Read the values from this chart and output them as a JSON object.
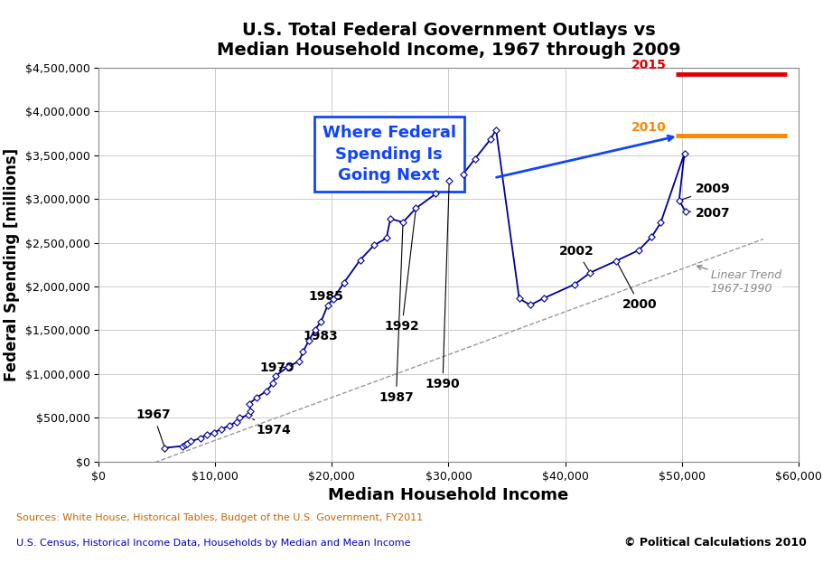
{
  "title": "U.S. Total Federal Government Outlays vs\nMedian Household Income, 1967 through 2009",
  "xlabel": "Median Household Income",
  "ylabel": "Federal Spending [millions]",
  "source_line1": "Sources: White House, Historical Tables, Budget of the U.S. Government, FY2011",
  "source_line2": "U.S. Census, Historical Income Data, Households by Median and Mean Income",
  "copyright": "© Political Calculations 2010",
  "xlim": [
    0,
    60000
  ],
  "ylim": [
    0,
    4500000
  ],
  "data": [
    [
      5665,
      157464
    ],
    [
      7143,
      178134
    ],
    [
      7408,
      195649
    ],
    [
      7564,
      209155
    ],
    [
      7902,
      231884
    ],
    [
      8734,
      268958
    ],
    [
      9264,
      306994
    ],
    [
      9867,
      332332
    ],
    [
      10512,
      371779
    ],
    [
      11197,
      409203
    ],
    [
      11800,
      457421
    ],
    [
      12050,
      500534
    ],
    [
      12840,
      531611
    ],
    [
      13007,
      578534
    ],
    [
      12902,
      661565
    ],
    [
      13572,
      734955
    ],
    [
      14416,
      808327
    ],
    [
      14958,
      900702
    ],
    [
      15149,
      978289
    ],
    [
      16218,
      1082166
    ],
    [
      17176,
      1147360
    ],
    [
      17520,
      1253218
    ],
    [
      18004,
      1381742
    ],
    [
      18569,
      1509685
    ],
    [
      19074,
      1601646
    ],
    [
      19618,
      1781365
    ],
    [
      20102,
      1860593
    ],
    [
      21023,
      2041628
    ],
    [
      22415,
      2302662
    ],
    [
      23618,
      2472029
    ],
    [
      24674,
      2552469
    ],
    [
      25011,
      2773087
    ],
    [
      26093,
      2734085
    ],
    [
      27203,
      2893028
    ],
    [
      28906,
      3059340
    ],
    [
      30056,
      3206008
    ],
    [
      31241,
      3281480
    ],
    [
      32264,
      3457079
    ],
    [
      33585,
      3678578
    ],
    [
      34076,
      3789973
    ],
    [
      36059,
      1862965
    ],
    [
      37005,
      1788950
    ],
    [
      38147,
      1864619
    ],
    [
      40816,
      2025186
    ],
    [
      42148,
      2157640
    ],
    [
      44389,
      2292841
    ],
    [
      46326,
      2415653
    ],
    [
      47431,
      2567654
    ],
    [
      48201,
      2730074
    ],
    [
      50233,
      3519967
    ],
    [
      49777,
      2982554
    ],
    [
      50303,
      2860451
    ]
  ],
  "proj_2010_x_start": 49500,
  "proj_2010_x_end": 59000,
  "proj_2010_y": 3720000,
  "proj_2015_x_start": 49500,
  "proj_2015_x_end": 59000,
  "proj_2015_y": 4430000,
  "proj_2010_color": "#FF8800",
  "proj_2015_color": "#DD0000",
  "main_line_color": "#000099",
  "diamond_color": "#000099",
  "trend_color": "#999999",
  "box_text_color": "#1144FF",
  "box_edge_color": "#1144FF"
}
